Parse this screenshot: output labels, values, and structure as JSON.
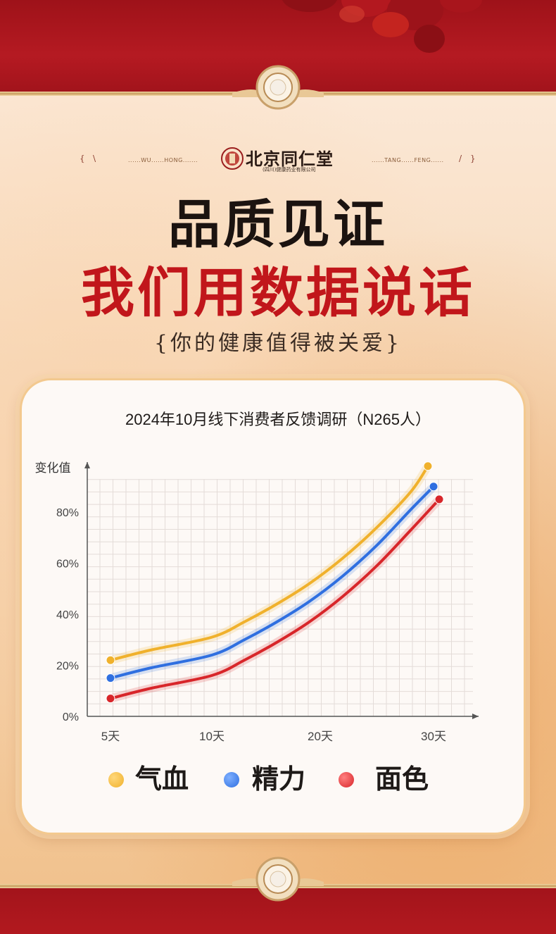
{
  "brand": {
    "name": "北京同仁堂",
    "sub": "(四川)健康药业有限公司",
    "deco_left": "......WU......HONG.......",
    "deco_right": "......TANG......FENG......",
    "bracket_left": "{",
    "slash_left": "\\",
    "bracket_right": "}",
    "slash_right": "/"
  },
  "headline": {
    "line1": "品质见证",
    "line2": "我们用数据说话",
    "line3": "{你的健康值得被关爱}"
  },
  "colors": {
    "brand_red": "#c1161b",
    "gold": "#e8b24c",
    "series_qixue": "#f0b12c",
    "series_jingli": "#2f6fe0",
    "series_mianse": "#d8262a"
  },
  "chart_data": {
    "type": "line",
    "title": "2024年10月线下消费者反馈调研（N265人）",
    "ylabel": "变化值",
    "xlabel": "",
    "x_ticks": [
      "5天",
      "10天",
      "20天",
      "30天"
    ],
    "y_ticks": [
      "0%",
      "20%",
      "40%",
      "60%",
      "80%"
    ],
    "ylim": [
      0,
      100
    ],
    "grid": true,
    "legend_position": "bottom",
    "series": [
      {
        "name": "气血",
        "color": "#f0b12c",
        "points": [
          [
            5,
            22
          ],
          [
            7,
            26
          ],
          [
            10,
            31
          ],
          [
            13,
            37
          ],
          [
            16,
            44
          ],
          [
            19,
            52
          ],
          [
            22,
            62
          ],
          [
            25,
            74
          ],
          [
            28,
            88
          ],
          [
            29.5,
            98
          ]
        ]
      },
      {
        "name": "精力",
        "color": "#2f6fe0",
        "points": [
          [
            5,
            15
          ],
          [
            7,
            19
          ],
          [
            10,
            24
          ],
          [
            13,
            30
          ],
          [
            16,
            37
          ],
          [
            19,
            45
          ],
          [
            22,
            55
          ],
          [
            25,
            67
          ],
          [
            28,
            81
          ],
          [
            30,
            90
          ]
        ]
      },
      {
        "name": "面色",
        "color": "#d8262a",
        "points": [
          [
            5,
            7
          ],
          [
            7,
            11
          ],
          [
            10,
            16
          ],
          [
            13,
            22
          ],
          [
            16,
            29
          ],
          [
            19,
            37
          ],
          [
            22,
            47
          ],
          [
            25,
            59
          ],
          [
            28,
            73
          ],
          [
            30.5,
            85
          ]
        ]
      }
    ]
  }
}
